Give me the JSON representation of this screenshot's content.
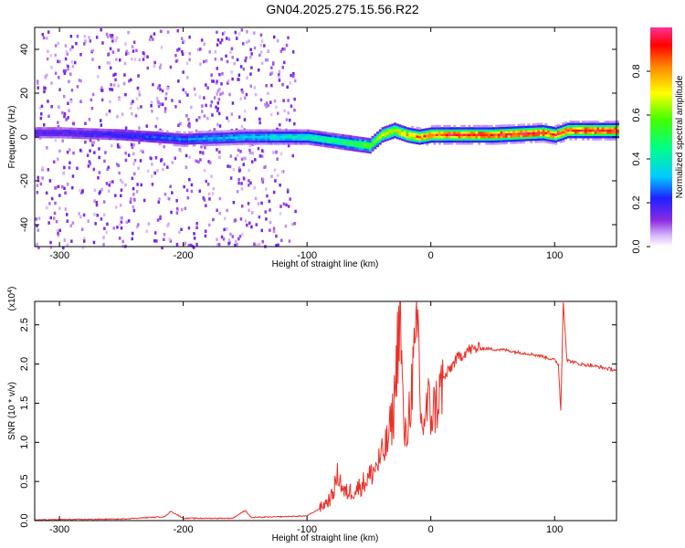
{
  "title": "GN04.2025.275.15.56.R22",
  "chart_data": [
    {
      "type": "heatmap",
      "name": "spectrogram",
      "xlabel": "Height of straight line (km)",
      "ylabel": "Frequency (Hz)",
      "xlim": [
        -320,
        150
      ],
      "ylim": [
        -50,
        50
      ],
      "xticks": [
        -300,
        -200,
        -100,
        0,
        100
      ],
      "yticks": [
        -40,
        -20,
        0,
        20,
        40
      ],
      "colorbar": {
        "label": "Normalized spectral amplitude",
        "range": [
          0,
          1
        ],
        "ticks": [
          0.0,
          0.2,
          0.4,
          0.6,
          0.8
        ],
        "tick_labels": [
          "0.0",
          "0.2",
          "0.4",
          "0.6",
          "0.8"
        ]
      },
      "ridge": {
        "x": [
          -300,
          -250,
          -200,
          -150,
          -100,
          -75,
          -50,
          -40,
          -30,
          -20,
          -10,
          0,
          50,
          90,
          100,
          110,
          150
        ],
        "freq": [
          2,
          1,
          -1,
          0,
          0,
          -2,
          -4,
          1,
          3,
          1,
          0,
          1,
          1,
          2,
          1,
          3,
          3
        ],
        "amplitude": [
          0.18,
          0.22,
          0.28,
          0.35,
          0.42,
          0.5,
          0.6,
          0.68,
          0.72,
          0.78,
          0.85,
          0.9,
          0.97,
          0.95,
          0.9,
          0.95,
          0.96
        ]
      }
    },
    {
      "type": "line",
      "name": "snr",
      "xlabel": "Height of straight line (km)",
      "ylabel": "SNR (10 * v/v)",
      "multiplier": "(x10",
      "multiplier_exp": "4",
      "multiplier_close": ")",
      "xlim": [
        -320,
        150
      ],
      "ylim": [
        0,
        2.8
      ],
      "xticks": [
        -300,
        -200,
        -100,
        0,
        100
      ],
      "yticks": [
        0.0,
        0.5,
        1.0,
        1.5,
        2.0,
        2.5
      ],
      "ytick_labels": [
        "0.0",
        "0.5",
        "1.0",
        "1.5",
        "2.0",
        "2.5"
      ],
      "series": [
        {
          "name": "SNR",
          "color": "#e8322a",
          "x": [
            -320,
            -250,
            -215,
            -210,
            -200,
            -160,
            -150,
            -145,
            -120,
            -100,
            -90,
            -80,
            -75,
            -70,
            -60,
            -50,
            -40,
            -35,
            -30,
            -25,
            -22,
            -20,
            -15,
            -10,
            -8,
            -5,
            -2,
            0,
            5,
            10,
            20,
            30,
            40,
            50,
            60,
            70,
            80,
            90,
            100,
            103,
            105,
            107,
            110,
            120,
            130,
            140,
            150
          ],
          "y": [
            0.01,
            0.02,
            0.05,
            0.12,
            0.03,
            0.03,
            0.13,
            0.04,
            0.05,
            0.06,
            0.15,
            0.3,
            0.6,
            0.35,
            0.4,
            0.55,
            0.8,
            1.0,
            1.4,
            2.75,
            1.2,
            1.0,
            1.8,
            2.45,
            1.2,
            1.3,
            1.5,
            1.35,
            1.5,
            1.8,
            2.05,
            2.18,
            2.2,
            2.19,
            2.18,
            2.15,
            2.13,
            2.1,
            2.05,
            2.0,
            1.4,
            2.8,
            2.05,
            2.0,
            1.98,
            1.95,
            1.92
          ]
        }
      ]
    }
  ]
}
